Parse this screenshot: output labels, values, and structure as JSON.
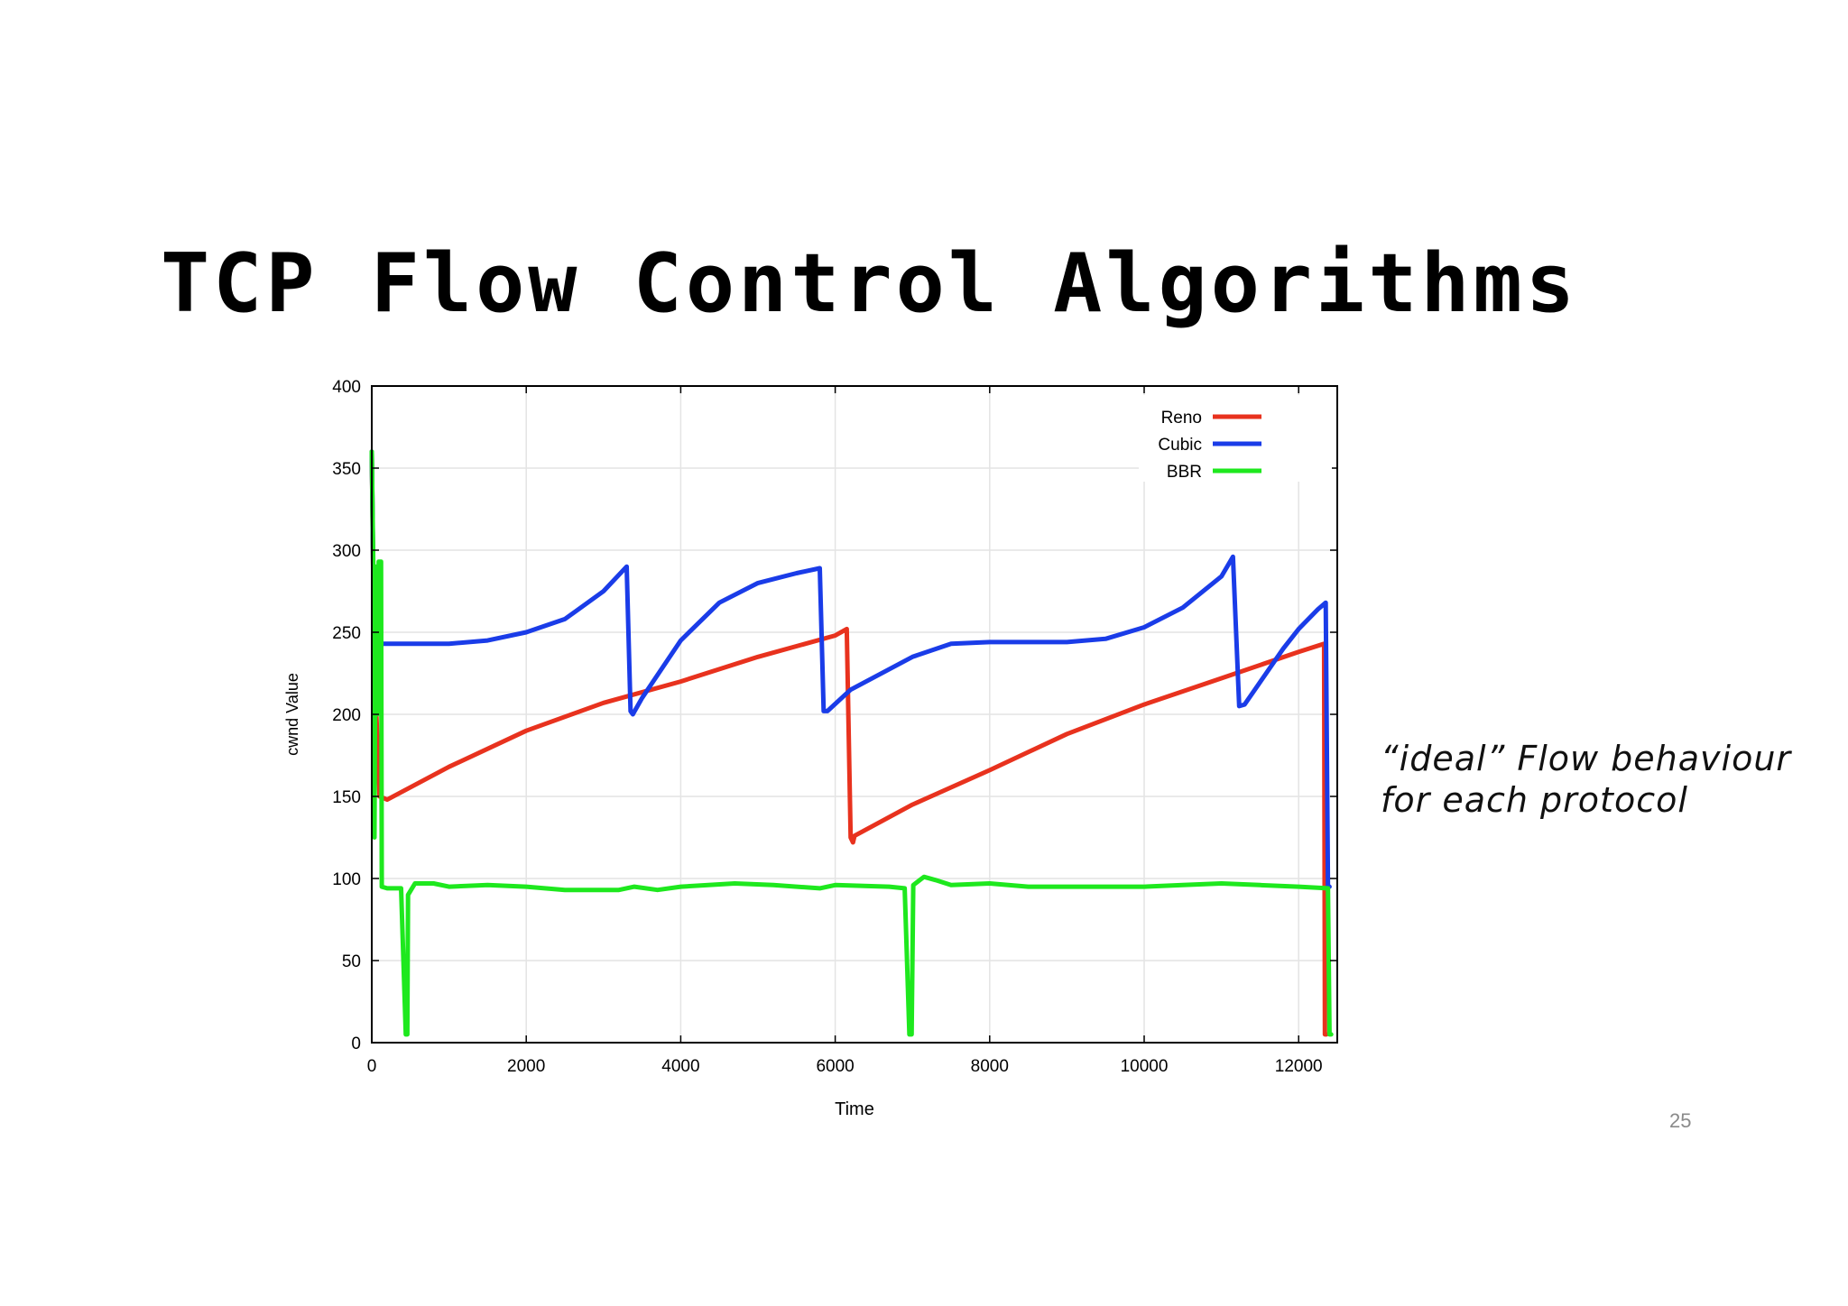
{
  "slide": {
    "title": "TCP Flow Control Algorithms",
    "annotation_line1": "“ideal” Flow behaviour",
    "annotation_line2": "for each protocol",
    "page_number": "25"
  },
  "chart_data": {
    "type": "line",
    "title": "",
    "xlabel": "Time",
    "ylabel": "cwnd Value",
    "xlim": [
      0,
      12500
    ],
    "ylim": [
      0,
      400
    ],
    "xticks": [
      0,
      2000,
      4000,
      6000,
      8000,
      10000,
      12000
    ],
    "yticks": [
      0,
      50,
      100,
      150,
      200,
      250,
      300,
      350,
      400
    ],
    "grid": true,
    "legend": "top-right",
    "series": [
      {
        "name": "Reno",
        "color": "#e8321e",
        "points": [
          [
            0,
            360
          ],
          [
            20,
            280
          ],
          [
            60,
            200
          ],
          [
            100,
            150
          ],
          [
            200,
            148
          ],
          [
            1000,
            168
          ],
          [
            2000,
            190
          ],
          [
            3000,
            207
          ],
          [
            4000,
            220
          ],
          [
            5000,
            235
          ],
          [
            6000,
            248
          ],
          [
            6150,
            252
          ],
          [
            6200,
            125
          ],
          [
            6230,
            122
          ],
          [
            6250,
            126
          ],
          [
            7000,
            145
          ],
          [
            8000,
            166
          ],
          [
            9000,
            188
          ],
          [
            10000,
            206
          ],
          [
            11000,
            222
          ],
          [
            12000,
            238
          ],
          [
            12330,
            243
          ],
          [
            12340,
            5
          ],
          [
            12360,
            5
          ]
        ]
      },
      {
        "name": "Cubic",
        "color": "#1a3ce8",
        "points": [
          [
            0,
            360
          ],
          [
            30,
            240
          ],
          [
            60,
            200
          ],
          [
            100,
            243
          ],
          [
            200,
            243
          ],
          [
            1000,
            243
          ],
          [
            1500,
            245
          ],
          [
            2000,
            250
          ],
          [
            2500,
            258
          ],
          [
            3000,
            275
          ],
          [
            3300,
            290
          ],
          [
            3350,
            202
          ],
          [
            3380,
            200
          ],
          [
            3500,
            210
          ],
          [
            4000,
            245
          ],
          [
            4500,
            268
          ],
          [
            5000,
            280
          ],
          [
            5500,
            286
          ],
          [
            5800,
            289
          ],
          [
            5850,
            202
          ],
          [
            5900,
            202
          ],
          [
            6200,
            215
          ],
          [
            7000,
            235
          ],
          [
            7500,
            243
          ],
          [
            8000,
            244
          ],
          [
            9000,
            244
          ],
          [
            9500,
            246
          ],
          [
            10000,
            253
          ],
          [
            10500,
            265
          ],
          [
            11000,
            284
          ],
          [
            11150,
            296
          ],
          [
            11230,
            205
          ],
          [
            11300,
            206
          ],
          [
            11800,
            240
          ],
          [
            12000,
            252
          ],
          [
            12250,
            264
          ],
          [
            12350,
            268
          ],
          [
            12380,
            95
          ],
          [
            12400,
            95
          ]
        ]
      },
      {
        "name": "BBR",
        "color": "#1ee81e",
        "points": [
          [
            0,
            360
          ],
          [
            20,
            290
          ],
          [
            35,
            125
          ],
          [
            50,
            290
          ],
          [
            70,
            200
          ],
          [
            90,
            293
          ],
          [
            120,
            293
          ],
          [
            130,
            95
          ],
          [
            200,
            94
          ],
          [
            380,
            94
          ],
          [
            440,
            5
          ],
          [
            460,
            5
          ],
          [
            470,
            90
          ],
          [
            560,
            97
          ],
          [
            800,
            97
          ],
          [
            1000,
            95
          ],
          [
            1500,
            96
          ],
          [
            2000,
            95
          ],
          [
            2500,
            93
          ],
          [
            3200,
            93
          ],
          [
            3400,
            95
          ],
          [
            3700,
            93
          ],
          [
            4000,
            95
          ],
          [
            4700,
            97
          ],
          [
            5200,
            96
          ],
          [
            5800,
            94
          ],
          [
            6000,
            96
          ],
          [
            6700,
            95
          ],
          [
            6900,
            94
          ],
          [
            6960,
            5
          ],
          [
            6990,
            5
          ],
          [
            7010,
            96
          ],
          [
            7150,
            101
          ],
          [
            7300,
            99
          ],
          [
            7500,
            96
          ],
          [
            8000,
            97
          ],
          [
            8500,
            95
          ],
          [
            9000,
            95
          ],
          [
            10000,
            95
          ],
          [
            10500,
            96
          ],
          [
            11000,
            97
          ],
          [
            11500,
            96
          ],
          [
            12000,
            95
          ],
          [
            12380,
            94
          ],
          [
            12400,
            5
          ],
          [
            12420,
            5
          ]
        ]
      }
    ]
  }
}
